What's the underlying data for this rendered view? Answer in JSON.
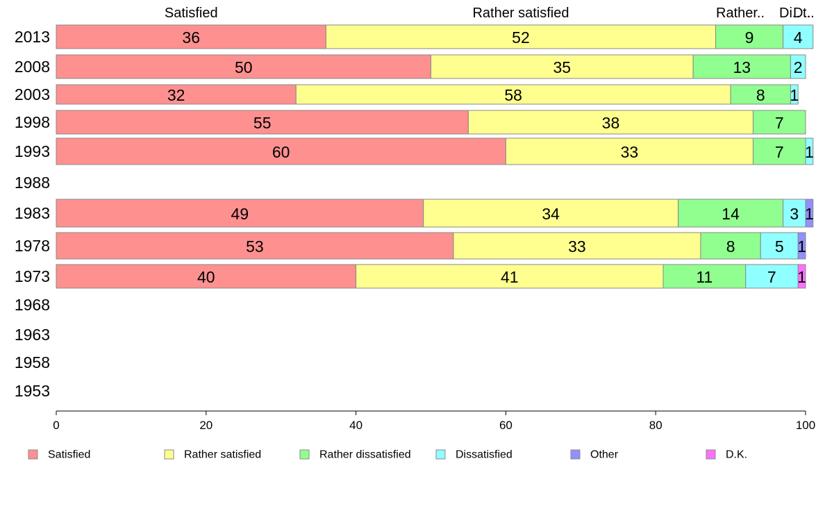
{
  "chart_data": {
    "type": "bar",
    "orientation": "horizontal",
    "stacked": true,
    "categories": [
      "2013",
      "2008",
      "2003",
      "1998",
      "1993",
      "1988",
      "1983",
      "1978",
      "1973",
      "1968",
      "1963",
      "1958",
      "1953"
    ],
    "series": [
      {
        "name": "Satisfied",
        "color": "#ff9090",
        "values": [
          36,
          50,
          32,
          55,
          60,
          null,
          49,
          53,
          40,
          null,
          null,
          null,
          null
        ]
      },
      {
        "name": "Rather satisfied",
        "color": "#ffff90",
        "values": [
          52,
          35,
          58,
          38,
          33,
          null,
          34,
          33,
          41,
          null,
          null,
          null,
          null
        ]
      },
      {
        "name": "Rather dissatisfied",
        "color": "#90ff90",
        "values": [
          9,
          13,
          8,
          7,
          7,
          null,
          14,
          8,
          11,
          null,
          null,
          null,
          null
        ]
      },
      {
        "name": "Dissatisfied",
        "color": "#90ffff",
        "values": [
          4,
          2,
          1,
          0,
          1,
          null,
          3,
          5,
          7,
          null,
          null,
          null,
          null
        ]
      },
      {
        "name": "Other",
        "color": "#9090ff",
        "values": [
          0,
          0,
          0,
          0,
          0,
          null,
          1,
          1,
          0,
          null,
          null,
          null,
          null
        ]
      },
      {
        "name": "D.K.",
        "color": "#ff70ff",
        "values": [
          0,
          0,
          0,
          0,
          0,
          null,
          0,
          0,
          1,
          null,
          null,
          null,
          null
        ]
      }
    ],
    "top_labels": [
      "Satisfied",
      "Rather satisfied",
      "Rather..",
      "Di..",
      "D..",
      "t.."
    ],
    "xlim": [
      0,
      100
    ],
    "x_ticks": [
      "0",
      "20",
      "40",
      "60",
      "80",
      "100"
    ],
    "grid": false,
    "legend_position": "bottom"
  }
}
